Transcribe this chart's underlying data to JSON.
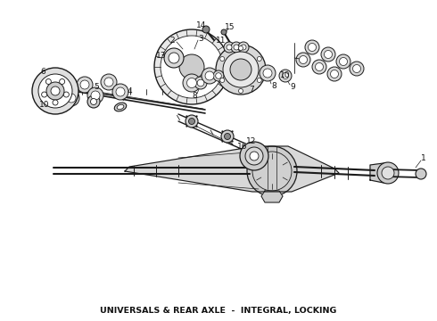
{
  "title": "UNIVERSALS & REAR AXLE  -  INTEGRAL, LOCKING",
  "title_fontsize": 6.8,
  "background_color": "#ffffff",
  "line_color": "#1a1a1a",
  "fig_width": 4.9,
  "fig_height": 3.6,
  "dpi": 100,
  "gray_dark": "#555555",
  "gray_mid": "#888888",
  "gray_light": "#cccccc",
  "gray_fill": "#b8b8b8"
}
